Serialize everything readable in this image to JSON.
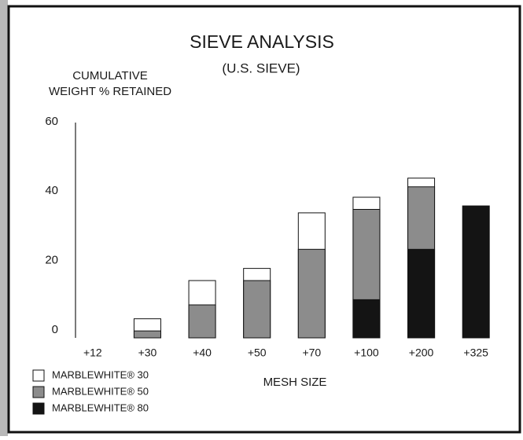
{
  "chart_data": {
    "type": "bar",
    "title": "SIEVE ANALYSIS",
    "subtitle": "(U.S. SIEVE)",
    "y_label": [
      "CUMULATIVE",
      "WEIGHT % RETAINED"
    ],
    "x_label": "MESH SIZE",
    "categories": [
      "+12",
      "+30",
      "+40",
      "+50",
      "+70",
      "+100",
      "+200",
      "+325"
    ],
    "series": [
      {
        "name": "MARBLEWHITE® 30",
        "color": "#ffffff",
        "values": [
          null,
          5.5,
          16.5,
          20,
          36,
          40.5,
          46,
          null
        ]
      },
      {
        "name": "MARBLEWHITE® 50",
        "color": "#8c8c8c",
        "values": [
          null,
          2,
          9.5,
          16.5,
          25.5,
          37,
          43.5,
          null
        ]
      },
      {
        "name": "MARBLEWHITE® 80",
        "color": "#141414",
        "values": [
          null,
          null,
          null,
          null,
          null,
          11,
          25.5,
          38
        ]
      }
    ],
    "ylim": [
      0,
      62
    ],
    "yticks": [
      0,
      20,
      40,
      60
    ],
    "grid": false,
    "legend": "bottom-left"
  }
}
